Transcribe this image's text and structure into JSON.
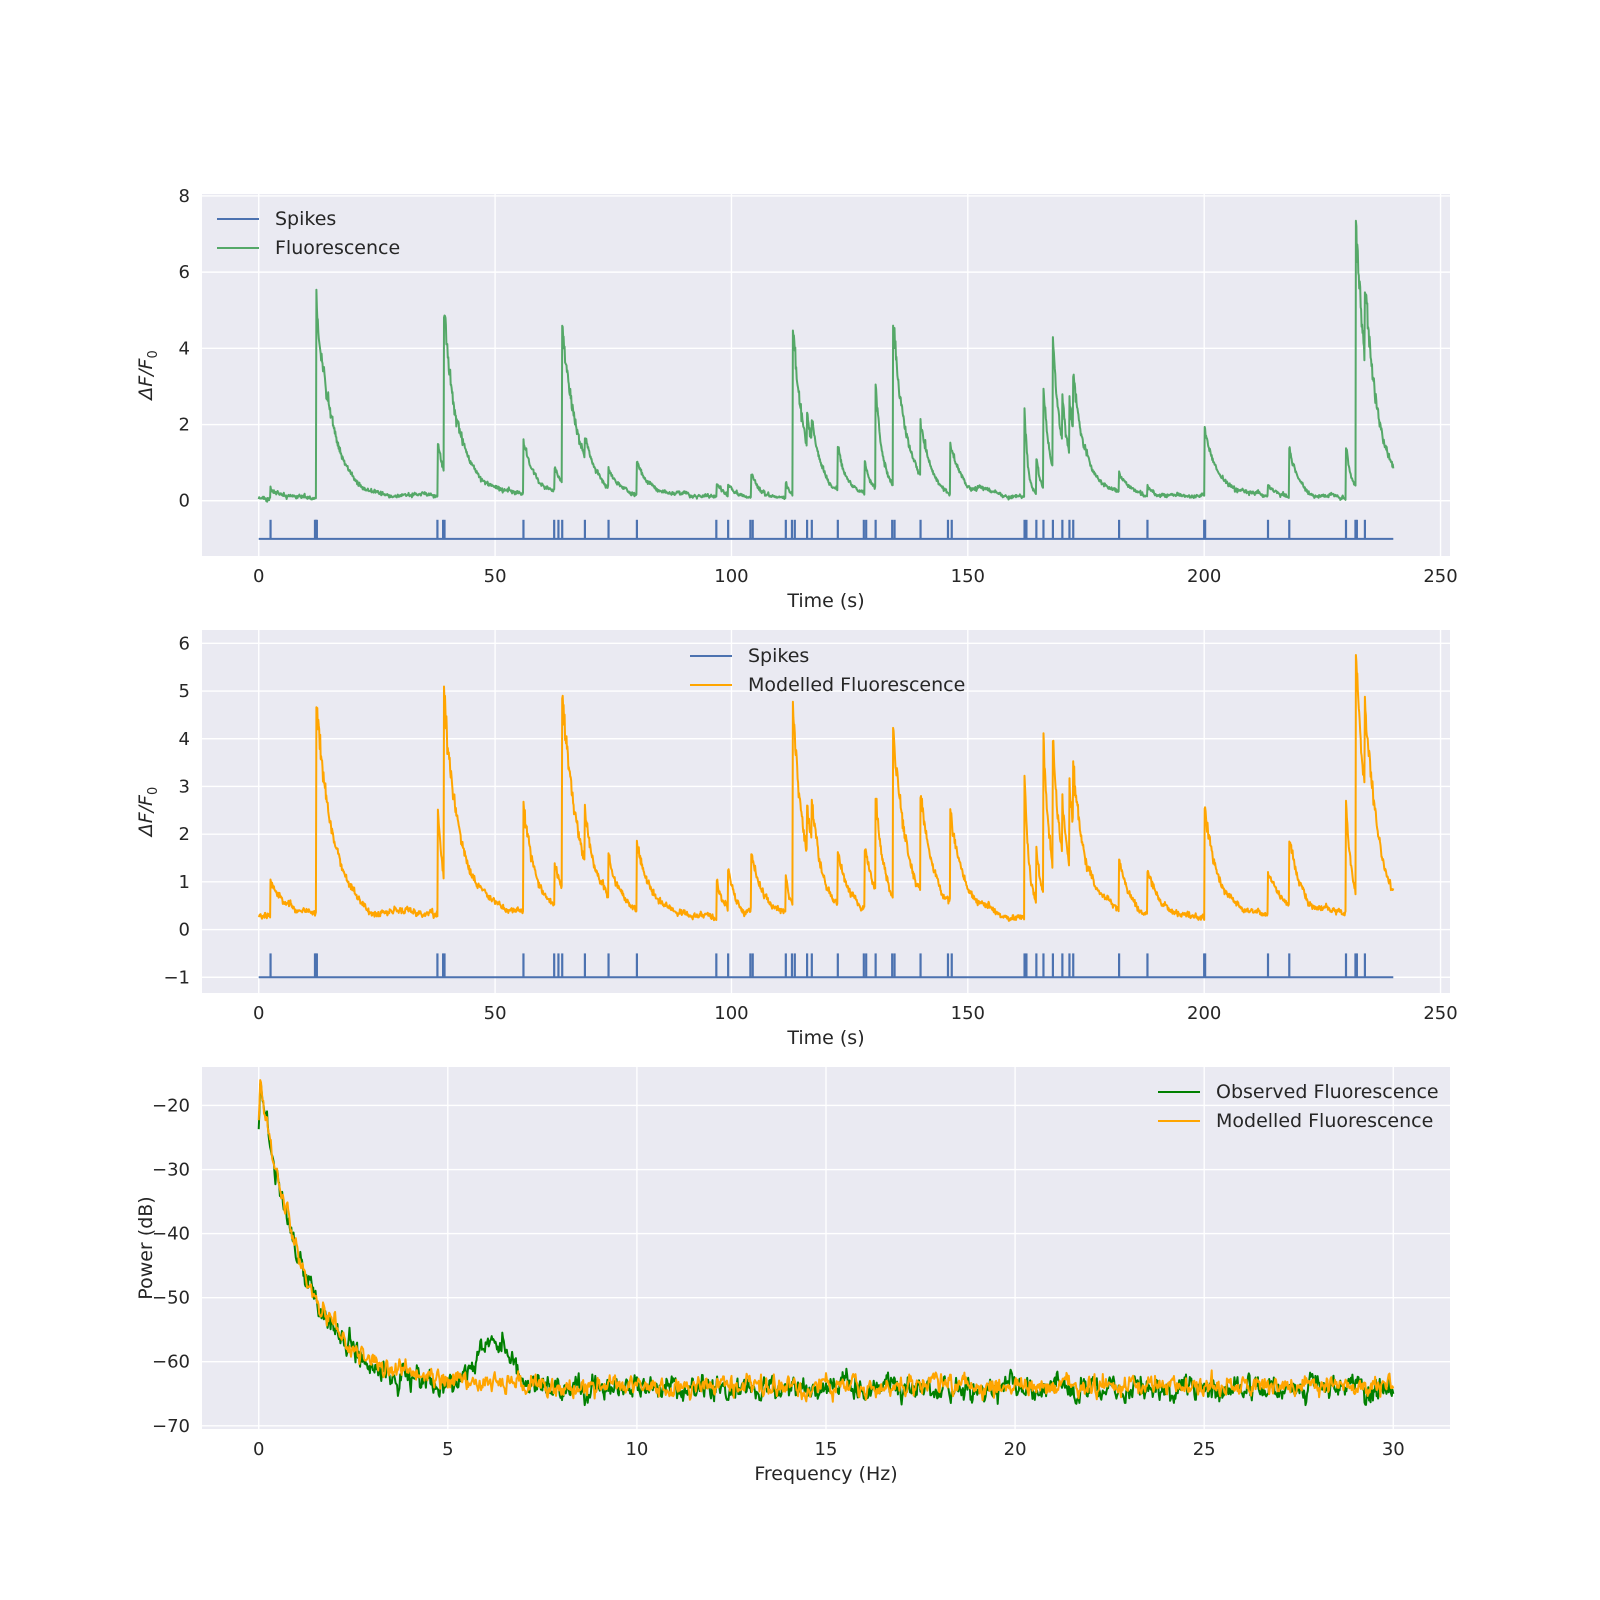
{
  "chart_data": [
    {
      "type": "line",
      "xlabel": "Time (s)",
      "ylabel_parts": [
        "ΔF/F",
        "0"
      ],
      "xlim": [
        -12,
        252
      ],
      "ylim": [
        -1.45,
        8.05
      ],
      "xticks": [
        0,
        50,
        100,
        150,
        200,
        250
      ],
      "yticks": [
        0,
        2,
        4,
        6,
        8
      ],
      "grid": true,
      "legend_placement": "top-left",
      "spike_times": [
        2.5,
        11.9,
        12.1,
        12.3,
        37.8,
        39.0,
        39.3,
        56.0,
        62.5,
        63.4,
        64.2,
        69.0,
        74.0,
        80.0,
        96.8,
        99.3,
        104.0,
        104.5,
        111.5,
        112.8,
        113.4,
        116.0,
        117.0,
        122.5,
        128.0,
        128.5,
        130.5,
        134.0,
        134.5,
        140.0,
        145.8,
        146.6,
        162.0,
        162.4,
        164.5,
        166.0,
        168.0,
        170.0,
        171.5,
        172.3,
        182.0,
        188.0,
        200.0,
        200.2,
        213.5,
        218.0,
        230.0,
        232.0,
        232.3,
        234.0
      ],
      "spike_baseline": -1,
      "series": [
        {
          "name": "Spikes",
          "color": "#4c72b0",
          "kind": "spikes",
          "height": 0.5
        },
        {
          "name": "Fluorescence",
          "color": "#55a868",
          "kind": "trace",
          "x_range": [
            0,
            240
          ],
          "baseline": 0.1,
          "noise": 0.07,
          "peak_noise_frac": 0.05,
          "events": [
            {
              "t": 2.5,
              "amp": 0.25,
              "tau": 3.0
            },
            {
              "t": 12.2,
              "amp": 5.0,
              "tau": 3.5
            },
            {
              "t": 37.9,
              "amp": 1.4,
              "tau": 1.5
            },
            {
              "t": 39.2,
              "amp": 4.1,
              "tau": 3.6
            },
            {
              "t": 56.0,
              "amp": 1.4,
              "tau": 2.5
            },
            {
              "t": 62.6,
              "amp": 0.6,
              "tau": 2.0
            },
            {
              "t": 64.2,
              "amp": 4.2,
              "tau": 3.3
            },
            {
              "t": 69.0,
              "amp": 0.6,
              "tau": 2.0
            },
            {
              "t": 74.0,
              "amp": 0.5,
              "tau": 2.0
            },
            {
              "t": 80.0,
              "amp": 0.9,
              "tau": 2.5
            },
            {
              "t": 96.9,
              "amp": 0.3,
              "tau": 1.5
            },
            {
              "t": 99.3,
              "amp": 0.3,
              "tau": 1.5
            },
            {
              "t": 104.2,
              "amp": 0.6,
              "tau": 2.0
            },
            {
              "t": 111.5,
              "amp": 0.4,
              "tau": 1.0
            },
            {
              "t": 113.0,
              "amp": 4.3,
              "tau": 2.6
            },
            {
              "t": 116.0,
              "amp": 0.8,
              "tau": 2.0
            },
            {
              "t": 117.0,
              "amp": 0.6,
              "tau": 2.0
            },
            {
              "t": 122.5,
              "amp": 1.2,
              "tau": 2.0
            },
            {
              "t": 128.2,
              "amp": 0.9,
              "tau": 1.5
            },
            {
              "t": 130.5,
              "amp": 2.7,
              "tau": 1.6
            },
            {
              "t": 134.2,
              "amp": 4.3,
              "tau": 2.8
            },
            {
              "t": 140.0,
              "amp": 1.4,
              "tau": 2.5
            },
            {
              "t": 146.3,
              "amp": 1.3,
              "tau": 2.5
            },
            {
              "t": 162.0,
              "amp": 2.4,
              "tau": 0.7
            },
            {
              "t": 164.5,
              "amp": 1.0,
              "tau": 1.0
            },
            {
              "t": 166.0,
              "amp": 2.7,
              "tau": 1.5
            },
            {
              "t": 168.0,
              "amp": 3.3,
              "tau": 2.0
            },
            {
              "t": 170.0,
              "amp": 1.2,
              "tau": 1.5
            },
            {
              "t": 171.5,
              "amp": 1.5,
              "tau": 2.0
            },
            {
              "t": 172.3,
              "amp": 1.5,
              "tau": 4.0
            },
            {
              "t": 182.0,
              "amp": 0.5,
              "tau": 2.0
            },
            {
              "t": 188.0,
              "amp": 0.3,
              "tau": 2.0
            },
            {
              "t": 200.1,
              "amp": 1.8,
              "tau": 3.0
            },
            {
              "t": 213.5,
              "amp": 0.3,
              "tau": 2.0
            },
            {
              "t": 218.0,
              "amp": 1.3,
              "tau": 2.0
            },
            {
              "t": 230.0,
              "amp": 1.4,
              "tau": 1.2
            },
            {
              "t": 232.1,
              "amp": 6.9,
              "tau": 3.0
            },
            {
              "t": 234.0,
              "amp": 1.8,
              "tau": 3.0
            }
          ]
        }
      ]
    },
    {
      "type": "line",
      "xlabel": "Time (s)",
      "ylabel_parts": [
        "ΔF/F",
        "0"
      ],
      "xlim": [
        -12,
        252
      ],
      "ylim": [
        -1.33,
        6.28
      ],
      "xticks": [
        0,
        50,
        100,
        150,
        200,
        250
      ],
      "yticks": [
        -1,
        0,
        1,
        2,
        3,
        4,
        5,
        6
      ],
      "grid": true,
      "legend_placement": "top-center",
      "spike_times": [
        2.5,
        11.9,
        12.1,
        12.3,
        37.8,
        39.0,
        39.3,
        56.0,
        62.5,
        63.4,
        64.2,
        69.0,
        74.0,
        80.0,
        96.8,
        99.3,
        104.0,
        104.5,
        111.5,
        112.8,
        113.4,
        116.0,
        117.0,
        122.5,
        128.0,
        128.5,
        130.5,
        134.0,
        134.5,
        140.0,
        145.8,
        146.6,
        162.0,
        162.4,
        164.5,
        166.0,
        168.0,
        170.0,
        171.5,
        172.3,
        182.0,
        188.0,
        200.0,
        200.2,
        213.5,
        218.0,
        230.0,
        232.0,
        232.3,
        234.0
      ],
      "spike_baseline": -1,
      "series": [
        {
          "name": "Spikes",
          "color": "#4c72b0",
          "kind": "spikes",
          "height": 0.5
        },
        {
          "name": "Modelled Fluorescence",
          "color": "#ffa500",
          "kind": "trace",
          "x_range": [
            0,
            240
          ],
          "baseline": 0.3,
          "noise": 0.09,
          "peak_noise_frac": 0.05,
          "events": [
            {
              "t": 2.5,
              "amp": 0.7,
              "tau": 3.0
            },
            {
              "t": 12.2,
              "amp": 4.4,
              "tau": 3.5
            },
            {
              "t": 37.9,
              "amp": 2.3,
              "tau": 1.3
            },
            {
              "t": 39.2,
              "amp": 4.0,
              "tau": 3.8
            },
            {
              "t": 56.0,
              "amp": 2.3,
              "tau": 2.6
            },
            {
              "t": 62.6,
              "amp": 0.9,
              "tau": 2.0
            },
            {
              "t": 64.2,
              "amp": 4.2,
              "tau": 3.3
            },
            {
              "t": 69.0,
              "amp": 1.1,
              "tau": 2.5
            },
            {
              "t": 74.0,
              "amp": 0.9,
              "tau": 2.5
            },
            {
              "t": 80.0,
              "amp": 1.4,
              "tau": 3.0
            },
            {
              "t": 96.9,
              "amp": 0.8,
              "tau": 2.0
            },
            {
              "t": 99.3,
              "amp": 0.8,
              "tau": 2.0
            },
            {
              "t": 104.2,
              "amp": 1.2,
              "tau": 2.5
            },
            {
              "t": 111.5,
              "amp": 0.8,
              "tau": 1.0
            },
            {
              "t": 113.0,
              "amp": 4.2,
              "tau": 2.6
            },
            {
              "t": 116.0,
              "amp": 1.0,
              "tau": 2.0
            },
            {
              "t": 117.0,
              "amp": 0.8,
              "tau": 2.5
            },
            {
              "t": 122.5,
              "amp": 1.1,
              "tau": 2.5
            },
            {
              "t": 128.2,
              "amp": 1.3,
              "tau": 2.0
            },
            {
              "t": 130.5,
              "amp": 1.9,
              "tau": 2.0
            },
            {
              "t": 134.2,
              "amp": 3.7,
              "tau": 3.0
            },
            {
              "t": 140.0,
              "amp": 2.0,
              "tau": 3.0
            },
            {
              "t": 146.3,
              "amp": 1.9,
              "tau": 2.8
            },
            {
              "t": 162.0,
              "amp": 3.0,
              "tau": 1.0
            },
            {
              "t": 164.5,
              "amp": 1.2,
              "tau": 1.5
            },
            {
              "t": 166.0,
              "amp": 3.3,
              "tau": 1.5
            },
            {
              "t": 168.0,
              "amp": 2.8,
              "tau": 2.0
            },
            {
              "t": 170.0,
              "amp": 1.2,
              "tau": 1.5
            },
            {
              "t": 171.5,
              "amp": 1.8,
              "tau": 2.0
            },
            {
              "t": 172.3,
              "amp": 1.3,
              "tau": 4.0
            },
            {
              "t": 182.0,
              "amp": 1.0,
              "tau": 2.5
            },
            {
              "t": 188.0,
              "amp": 0.9,
              "tau": 3.0
            },
            {
              "t": 200.1,
              "amp": 2.3,
              "tau": 3.0
            },
            {
              "t": 213.5,
              "amp": 0.9,
              "tau": 2.5
            },
            {
              "t": 218.0,
              "amp": 1.4,
              "tau": 2.5
            },
            {
              "t": 230.0,
              "amp": 2.3,
              "tau": 1.2
            },
            {
              "t": 232.1,
              "amp": 4.9,
              "tau": 3.0
            },
            {
              "t": 234.0,
              "amp": 1.8,
              "tau": 3.0
            }
          ]
        }
      ]
    },
    {
      "type": "line",
      "xlabel": "Frequency (Hz)",
      "ylabel": "Power (dB)",
      "xlim": [
        -1.5,
        31.5
      ],
      "ylim": [
        -70.5,
        -14.0
      ],
      "xticks": [
        0,
        5,
        10,
        15,
        20,
        25,
        30
      ],
      "yticks": [
        -70,
        -60,
        -50,
        -40,
        -30,
        -20
      ],
      "grid": true,
      "legend_placement": "top-right",
      "series": [
        {
          "name": "Observed Fluorescence",
          "color": "#008000",
          "kind": "spectrum",
          "x_range": [
            0,
            30
          ],
          "peak_db": -15,
          "floor_db": -64.2,
          "decay_scale": 1.2,
          "noise": 1.2,
          "bump_hz": 6.2,
          "bump_db": 7,
          "bump_width": 0.45
        },
        {
          "name": "Modelled Fluorescence",
          "color": "#ffa500",
          "kind": "spectrum",
          "x_range": [
            0,
            30
          ],
          "peak_db": -15,
          "floor_db": -63.8,
          "decay_scale": 1.2,
          "noise": 1.0,
          "bump_hz": 6.2,
          "bump_db": 0,
          "bump_width": 0.45
        }
      ]
    }
  ]
}
